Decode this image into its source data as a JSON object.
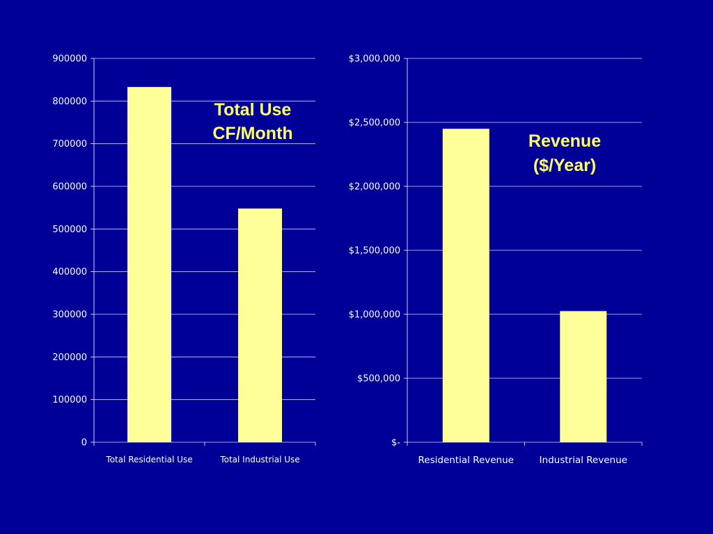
{
  "colors": {
    "background": "#000099",
    "bar": "#ffff99",
    "grid": "#ffffff",
    "annotation": "#ffff66"
  },
  "chart_data": [
    {
      "type": "bar",
      "title": "",
      "annotation": [
        "Total Use",
        "CF/Month"
      ],
      "categories": [
        "Total Residential Use",
        "Total Industrial Use"
      ],
      "values": [
        833000,
        548000
      ],
      "ylim": [
        0,
        900000
      ],
      "yticks": [
        0,
        100000,
        200000,
        300000,
        400000,
        500000,
        600000,
        700000,
        800000,
        900000
      ],
      "ytick_labels": [
        "0",
        "100000",
        "200000",
        "300000",
        "400000",
        "500000",
        "600000",
        "700000",
        "800000",
        "900000"
      ],
      "grid": true,
      "xlabel": "",
      "ylabel": ""
    },
    {
      "type": "bar",
      "title": "",
      "annotation": [
        "Revenue",
        "($/Year)"
      ],
      "categories": [
        "Residential Revenue",
        "Industrial Revenue"
      ],
      "values": [
        2450000,
        1025000
      ],
      "ylim": [
        0,
        3000000
      ],
      "yticks": [
        0,
        500000,
        1000000,
        1500000,
        2000000,
        2500000,
        3000000
      ],
      "ytick_labels": [
        "$-",
        "$500,000",
        "$1,000,000",
        "$1,500,000",
        "$2,000,000",
        "$2,500,000",
        "$3,000,000"
      ],
      "grid": true,
      "xlabel": "",
      "ylabel": ""
    }
  ]
}
